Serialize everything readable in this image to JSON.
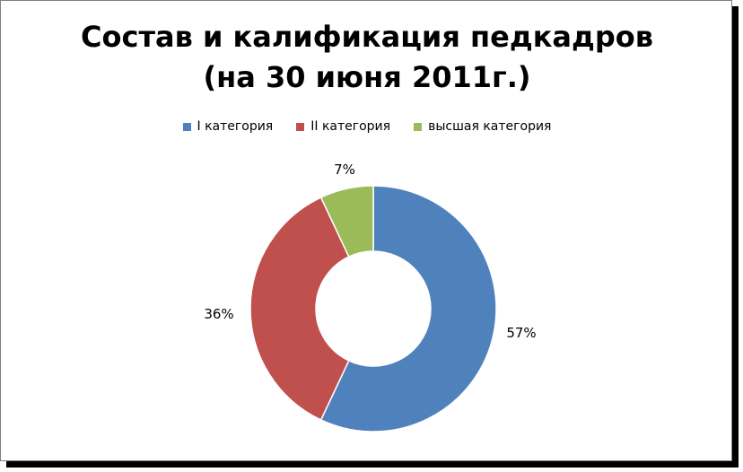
{
  "chart_data": {
    "type": "pie",
    "variant": "doughnut",
    "title": "Состав и калификация педкадров",
    "subtitle": "(на 30 июня 2011г.)",
    "legend_position": "top",
    "slices": [
      {
        "name": "I категория",
        "value": 57,
        "label": "57%",
        "color": "#4f81bd"
      },
      {
        "name": "II категория",
        "value": 36,
        "label": "36%",
        "color": "#c0504d"
      },
      {
        "name": "высшая категория",
        "value": 7,
        "label": "7%",
        "color": "#9bbb59"
      }
    ]
  }
}
